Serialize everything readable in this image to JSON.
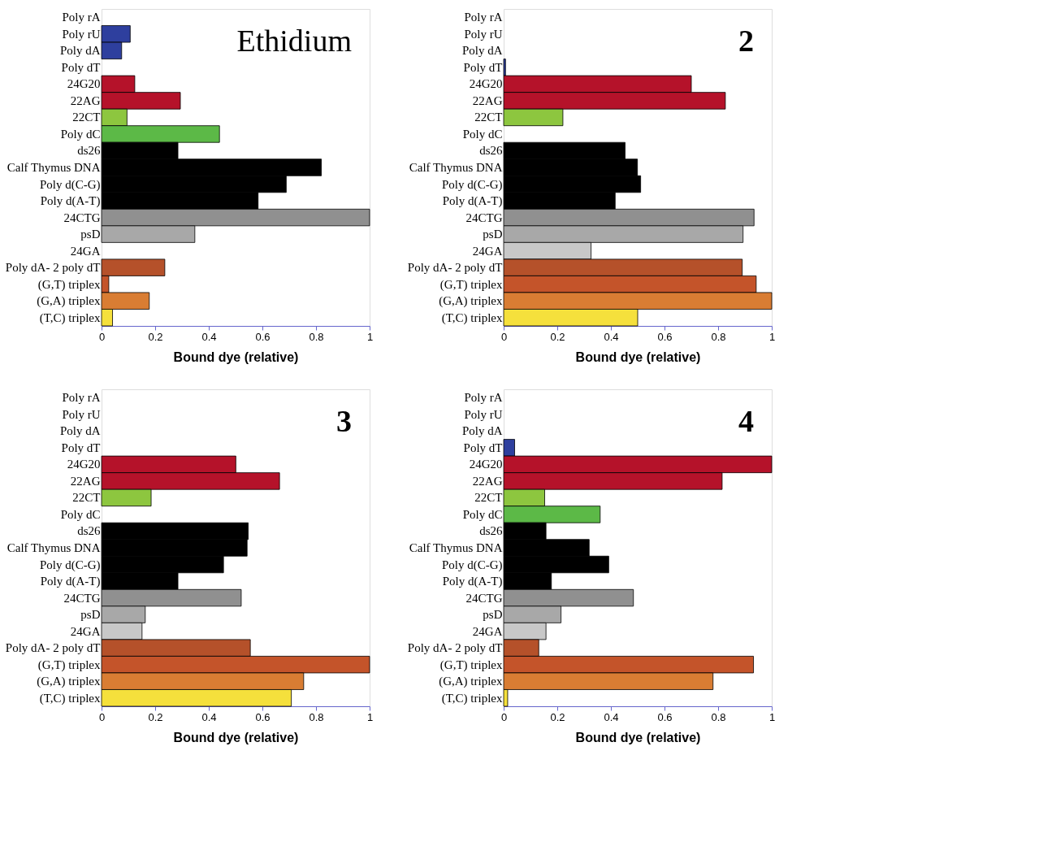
{
  "chart_data": [
    {
      "type": "bar",
      "orientation": "horizontal",
      "title": "Ethidium",
      "xlabel": "Bound dye (relative)",
      "categories": [
        "Poly rA",
        "Poly rU",
        "Poly dA",
        "Poly dT",
        "24G20",
        "22AG",
        "22CT",
        "Poly dC",
        "ds26",
        "Calf Thymus DNA",
        "Poly d(C-G)",
        "Poly d(A-T)",
        "24CTG",
        "psD",
        "24GA",
        "Poly dA- 2 poly dT",
        "(G,T) triplex",
        "(G,A) triplex",
        "(T,C) triplex"
      ],
      "values": [
        0,
        0.107,
        0.075,
        0,
        0.124,
        0.294,
        0.095,
        0.44,
        0.285,
        0.82,
        0.689,
        0.584,
        1.0,
        0.348,
        0,
        0.236,
        0.027,
        0.178,
        0.041
      ],
      "colors": [
        "#2e3f9e",
        "#2e3f9e",
        "#2e3f9e",
        "#2e3f9e",
        "#b5122a",
        "#b5122a",
        "#8dc63f",
        "#5cb947",
        "#000000",
        "#000000",
        "#000000",
        "#000000",
        "#909090",
        "#a8a8a8",
        "#c8c8c8",
        "#b5512a",
        "#c4542a",
        "#d97d33",
        "#f5e03c"
      ],
      "xlim": [
        0,
        1
      ],
      "xticks": [
        0,
        0.2,
        0.4,
        0.6,
        0.8,
        1
      ]
    },
    {
      "type": "bar",
      "orientation": "horizontal",
      "title": "2",
      "xlabel": "Bound dye (relative)",
      "categories": [
        "Poly rA",
        "Poly rU",
        "Poly dA",
        "Poly dT",
        "24G20",
        "22AG",
        "22CT",
        "Poly dC",
        "ds26",
        "Calf Thymus DNA",
        "Poly d(C-G)",
        "Poly d(A-T)",
        "24CTG",
        "psD",
        "24GA",
        "Poly dA- 2 poly dT",
        "(G,T) triplex",
        "(G,A) triplex",
        "(T,C) triplex"
      ],
      "values": [
        0,
        0,
        0,
        0.007,
        0.7,
        0.827,
        0.221,
        0,
        0.453,
        0.499,
        0.511,
        0.416,
        0.934,
        0.893,
        0.326,
        0.89,
        0.942,
        1.0,
        0.5
      ],
      "colors": [
        "#2e3f9e",
        "#2e3f9e",
        "#2e3f9e",
        "#2e3f9e",
        "#b5122a",
        "#b5122a",
        "#8dc63f",
        "#5cb947",
        "#000000",
        "#000000",
        "#000000",
        "#000000",
        "#909090",
        "#a8a8a8",
        "#c8c8c8",
        "#b5512a",
        "#c4542a",
        "#d97d33",
        "#f5e03c"
      ],
      "xlim": [
        0,
        1
      ],
      "xticks": [
        0,
        0.2,
        0.4,
        0.6,
        0.8,
        1
      ]
    },
    {
      "type": "bar",
      "orientation": "horizontal",
      "title": "3",
      "xlabel": "Bound dye (relative)",
      "categories": [
        "Poly rA",
        "Poly rU",
        "Poly dA",
        "Poly dT",
        "24G20",
        "22AG",
        "22CT",
        "Poly dC",
        "ds26",
        "Calf Thymus DNA",
        "Poly d(C-G)",
        "Poly d(A-T)",
        "24CTG",
        "psD",
        "24GA",
        "Poly dA- 2 poly dT",
        "(G,T) triplex",
        "(G,A) triplex",
        "(T,C) triplex"
      ],
      "values": [
        0,
        0,
        0,
        0,
        0.501,
        0.664,
        0.185,
        0,
        0.547,
        0.543,
        0.455,
        0.285,
        0.521,
        0.163,
        0.151,
        0.555,
        1.0,
        0.754,
        0.708
      ],
      "colors": [
        "#2e3f9e",
        "#2e3f9e",
        "#2e3f9e",
        "#2e3f9e",
        "#b5122a",
        "#b5122a",
        "#8dc63f",
        "#5cb947",
        "#000000",
        "#000000",
        "#000000",
        "#000000",
        "#909090",
        "#a8a8a8",
        "#c8c8c8",
        "#b5512a",
        "#c4542a",
        "#d97d33",
        "#f5e03c"
      ],
      "xlim": [
        0,
        1
      ],
      "xticks": [
        0,
        0.2,
        0.4,
        0.6,
        0.8,
        1
      ]
    },
    {
      "type": "bar",
      "orientation": "horizontal",
      "title": "4",
      "xlabel": "Bound dye (relative)",
      "categories": [
        "Poly rA",
        "Poly rU",
        "Poly dA",
        "Poly dT",
        "24G20",
        "22AG",
        "22CT",
        "Poly dC",
        "ds26",
        "Calf Thymus DNA",
        "Poly d(C-G)",
        "Poly d(A-T)",
        "24CTG",
        "psD",
        "24GA",
        "Poly dA- 2 poly dT",
        "(G,T) triplex",
        "(G,A) triplex",
        "(T,C) triplex"
      ],
      "values": [
        0,
        0,
        0,
        0.041,
        1.0,
        0.815,
        0.153,
        0.36,
        0.158,
        0.319,
        0.392,
        0.178,
        0.484,
        0.214,
        0.158,
        0.131,
        0.932,
        0.781,
        0.015
      ],
      "colors": [
        "#2e3f9e",
        "#2e3f9e",
        "#2e3f9e",
        "#2e3f9e",
        "#b5122a",
        "#b5122a",
        "#8dc63f",
        "#5cb947",
        "#000000",
        "#000000",
        "#000000",
        "#000000",
        "#909090",
        "#a8a8a8",
        "#c8c8c8",
        "#b5512a",
        "#c4542a",
        "#d97d33",
        "#f5e03c"
      ],
      "xlim": [
        0,
        1
      ],
      "xticks": [
        0,
        0.2,
        0.4,
        0.6,
        0.8,
        1
      ]
    }
  ]
}
